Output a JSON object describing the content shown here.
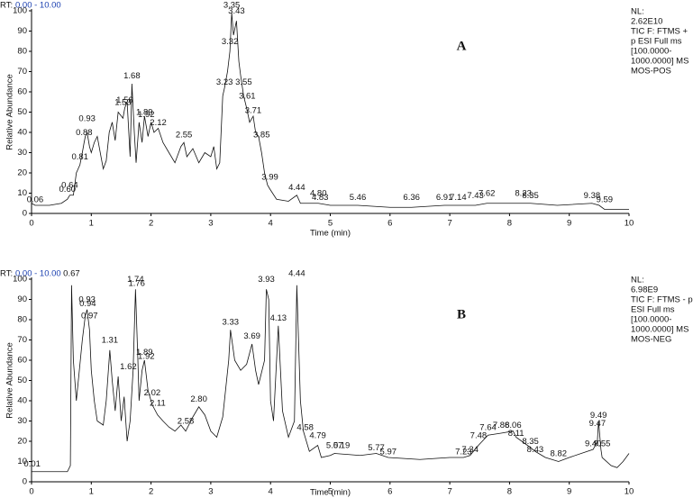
{
  "chart_data": [
    {
      "type": "line",
      "rt_prefix": "RT:",
      "rt_range": "0.00 - 10.00",
      "panel": "A",
      "info": [
        "NL:",
        "2.62E10",
        "TIC F: FTMS +",
        "p ESI Full ms",
        "[100.0000-",
        "1000.0000]  MS",
        "MOS-POS"
      ],
      "xlabel": "Time (min)",
      "ylabel": "Relative Abundance",
      "color": "#111111",
      "xlim": [
        0,
        10
      ],
      "ylim": [
        0,
        100
      ],
      "xticks": [
        0,
        1,
        2,
        3,
        4,
        5,
        6,
        7,
        8,
        9,
        10
      ],
      "yticks": [
        0,
        10,
        20,
        30,
        40,
        50,
        60,
        70,
        80,
        90,
        100
      ],
      "x": [
        0,
        0.06,
        0.3,
        0.5,
        0.6,
        0.64,
        0.7,
        0.75,
        0.81,
        0.85,
        0.88,
        0.9,
        0.93,
        0.97,
        1.0,
        1.05,
        1.1,
        1.2,
        1.25,
        1.3,
        1.35,
        1.4,
        1.45,
        1.53,
        1.56,
        1.6,
        1.65,
        1.68,
        1.72,
        1.75,
        1.8,
        1.85,
        1.89,
        1.95,
        2.0,
        2.05,
        2.12,
        2.2,
        2.3,
        2.4,
        2.5,
        2.55,
        2.6,
        2.7,
        2.8,
        2.9,
        3.0,
        3.05,
        3.1,
        3.15,
        3.2,
        3.23,
        3.28,
        3.32,
        3.35,
        3.38,
        3.43,
        3.47,
        3.5,
        3.55,
        3.6,
        3.65,
        3.71,
        3.75,
        3.8,
        3.85,
        3.9,
        3.95,
        3.99,
        4.1,
        4.3,
        4.44,
        4.5,
        4.8,
        5.0,
        5.46,
        6.0,
        6.36,
        6.91,
        7.14,
        7.43,
        7.62,
        8.0,
        8.23,
        8.35,
        8.8,
        9.38,
        9.5,
        9.59,
        10
      ],
      "values": [
        5,
        4,
        4,
        5,
        7,
        9,
        9,
        20,
        24,
        30,
        35,
        38,
        40,
        33,
        30,
        35,
        38,
        22,
        26,
        40,
        45,
        36,
        50,
        47,
        52,
        55,
        28,
        64,
        40,
        25,
        45,
        35,
        48,
        38,
        45,
        40,
        42,
        35,
        30,
        25,
        33,
        35,
        28,
        32,
        25,
        30,
        28,
        33,
        22,
        25,
        58,
        62,
        70,
        80,
        99,
        88,
        95,
        75,
        68,
        58,
        52,
        45,
        48,
        40,
        38,
        30,
        20,
        14,
        12,
        7,
        6,
        9,
        5,
        5,
        4,
        4,
        3,
        3,
        4,
        4,
        4,
        5,
        5,
        5,
        5,
        4,
        5,
        4,
        2,
        2
      ],
      "peaks": [
        {
          "x": 0.06,
          "y": 5,
          "label": "0.06"
        },
        {
          "x": 0.6,
          "y": 10,
          "label": "0.60"
        },
        {
          "x": 0.64,
          "y": 12,
          "label": "0.64"
        },
        {
          "x": 0.81,
          "y": 26,
          "label": "0.81"
        },
        {
          "x": 0.88,
          "y": 38,
          "label": "0.88"
        },
        {
          "x": 0.93,
          "y": 45,
          "label": "0.93"
        },
        {
          "x": 1.53,
          "y": 53,
          "label": "1.53"
        },
        {
          "x": 1.56,
          "y": 54,
          "label": "1.56"
        },
        {
          "x": 1.68,
          "y": 66,
          "label": "1.68"
        },
        {
          "x": 1.89,
          "y": 48,
          "label": "1.89"
        },
        {
          "x": 1.92,
          "y": 47,
          "label": "1.92"
        },
        {
          "x": 2.12,
          "y": 43,
          "label": "2.12"
        },
        {
          "x": 2.55,
          "y": 37,
          "label": "2.55"
        },
        {
          "x": 3.23,
          "y": 63,
          "label": "3.23"
        },
        {
          "x": 3.32,
          "y": 83,
          "label": "3.32"
        },
        {
          "x": 3.35,
          "y": 101,
          "label": "3.35"
        },
        {
          "x": 3.43,
          "y": 98,
          "label": "3.43"
        },
        {
          "x": 3.55,
          "y": 63,
          "label": "3.55"
        },
        {
          "x": 3.61,
          "y": 56,
          "label": "3.61"
        },
        {
          "x": 3.71,
          "y": 49,
          "label": "3.71"
        },
        {
          "x": 3.85,
          "y": 37,
          "label": "3.85"
        },
        {
          "x": 3.99,
          "y": 16,
          "label": "3.99"
        },
        {
          "x": 4.44,
          "y": 11,
          "label": "4.44"
        },
        {
          "x": 4.8,
          "y": 8,
          "label": "4.80"
        },
        {
          "x": 4.83,
          "y": 6,
          "label": "4.83"
        },
        {
          "x": 5.46,
          "y": 6,
          "label": "5.46"
        },
        {
          "x": 6.36,
          "y": 6,
          "label": "6.36"
        },
        {
          "x": 6.91,
          "y": 6,
          "label": "6.91"
        },
        {
          "x": 7.14,
          "y": 6,
          "label": "7.14"
        },
        {
          "x": 7.43,
          "y": 7,
          "label": "7.43"
        },
        {
          "x": 7.62,
          "y": 8,
          "label": "7.62"
        },
        {
          "x": 8.23,
          "y": 8,
          "label": "8.23"
        },
        {
          "x": 8.35,
          "y": 7,
          "label": "8.35"
        },
        {
          "x": 9.38,
          "y": 7,
          "label": "9.38"
        },
        {
          "x": 9.59,
          "y": 5,
          "label": "9.59"
        }
      ]
    },
    {
      "type": "line",
      "rt_prefix": "RT:",
      "rt_range": "0.00 - 10.00",
      "panel": "B",
      "info": [
        "NL:",
        "6.98E9",
        "TIC F: FTMS - p",
        "ESI Full ms",
        "[100.0000-",
        "1000.0000]  MS",
        "MOS-NEG"
      ],
      "xlabel": "Time (min)",
      "ylabel": "Relative Abundance",
      "color": "#111111",
      "xlim": [
        0,
        10
      ],
      "ylim": [
        0,
        100
      ],
      "xticks": [
        0,
        1,
        2,
        3,
        4,
        5,
        6,
        7,
        8,
        9,
        10
      ],
      "yticks": [
        0,
        10,
        20,
        30,
        40,
        50,
        60,
        70,
        80,
        90,
        100
      ],
      "x": [
        0,
        0.01,
        0.6,
        0.65,
        0.67,
        0.7,
        0.75,
        0.8,
        0.85,
        0.9,
        0.93,
        0.97,
        1.0,
        1.05,
        1.1,
        1.2,
        1.25,
        1.31,
        1.35,
        1.4,
        1.45,
        1.5,
        1.55,
        1.6,
        1.65,
        1.7,
        1.74,
        1.78,
        1.8,
        1.85,
        1.89,
        1.95,
        2.02,
        2.11,
        2.2,
        2.3,
        2.4,
        2.5,
        2.58,
        2.7,
        2.8,
        2.9,
        3.0,
        3.1,
        3.2,
        3.3,
        3.33,
        3.4,
        3.5,
        3.6,
        3.69,
        3.75,
        3.8,
        3.9,
        3.93,
        3.97,
        4.0,
        4.05,
        4.13,
        4.2,
        4.3,
        4.4,
        4.44,
        4.5,
        4.55,
        4.58,
        4.65,
        4.79,
        4.85,
        5.0,
        5.07,
        5.5,
        5.77,
        5.97,
        6.5,
        7.0,
        7.23,
        7.34,
        7.48,
        7.64,
        7.86,
        8.06,
        8.11,
        8.3,
        8.43,
        8.6,
        8.82,
        9.0,
        9.4,
        9.47,
        9.49,
        9.53,
        9.55,
        9.7,
        9.8,
        9.9,
        10
      ],
      "values": [
        5,
        5,
        5,
        8,
        97,
        60,
        40,
        55,
        70,
        82,
        85,
        75,
        55,
        40,
        30,
        28,
        40,
        65,
        50,
        35,
        52,
        30,
        42,
        20,
        30,
        55,
        95,
        60,
        40,
        55,
        60,
        45,
        38,
        33,
        30,
        27,
        25,
        28,
        25,
        32,
        37,
        33,
        25,
        22,
        32,
        60,
        75,
        60,
        55,
        58,
        68,
        55,
        48,
        60,
        95,
        90,
        40,
        30,
        77,
        35,
        22,
        30,
        97,
        40,
        25,
        22,
        15,
        18,
        12,
        13,
        14,
        13,
        14,
        12,
        11,
        12,
        12,
        13,
        18,
        23,
        24,
        25,
        22,
        18,
        15,
        12,
        10,
        12,
        16,
        20,
        30,
        16,
        12,
        8,
        7,
        10,
        14
      ],
      "peaks": [
        {
          "x": 0.01,
          "y": 7,
          "label": "0.01"
        },
        {
          "x": 0.67,
          "y": 101,
          "label": "0.67"
        },
        {
          "x": 0.93,
          "y": 88,
          "label": "0.93"
        },
        {
          "x": 0.94,
          "y": 86,
          "label": "0.94"
        },
        {
          "x": 0.97,
          "y": 80,
          "label": "0.97"
        },
        {
          "x": 1.31,
          "y": 68,
          "label": "1.31"
        },
        {
          "x": 1.62,
          "y": 55,
          "label": "1.62"
        },
        {
          "x": 1.74,
          "y": 98,
          "label": "1.74"
        },
        {
          "x": 1.76,
          "y": 96,
          "label": "1.76"
        },
        {
          "x": 1.89,
          "y": 62,
          "label": "1.89"
        },
        {
          "x": 1.92,
          "y": 60,
          "label": "1.92"
        },
        {
          "x": 2.02,
          "y": 42,
          "label": "2.02"
        },
        {
          "x": 2.11,
          "y": 37,
          "label": "2.11"
        },
        {
          "x": 2.58,
          "y": 28,
          "label": "2.58"
        },
        {
          "x": 2.8,
          "y": 39,
          "label": "2.80"
        },
        {
          "x": 3.33,
          "y": 77,
          "label": "3.33"
        },
        {
          "x": 3.69,
          "y": 70,
          "label": "3.69"
        },
        {
          "x": 3.93,
          "y": 98,
          "label": "3.93"
        },
        {
          "x": 4.13,
          "y": 79,
          "label": "4.13"
        },
        {
          "x": 4.44,
          "y": 101,
          "label": "4.44"
        },
        {
          "x": 4.58,
          "y": 25,
          "label": "4.58"
        },
        {
          "x": 4.79,
          "y": 21,
          "label": "4.79"
        },
        {
          "x": 5.07,
          "y": 16,
          "label": "5.07"
        },
        {
          "x": 5.19,
          "y": 16,
          "label": "5.19"
        },
        {
          "x": 5.77,
          "y": 15,
          "label": "5.77"
        },
        {
          "x": 5.97,
          "y": 13,
          "label": "5.97"
        },
        {
          "x": 7.23,
          "y": 13,
          "label": "7.23"
        },
        {
          "x": 7.34,
          "y": 14,
          "label": "7.34"
        },
        {
          "x": 7.48,
          "y": 21,
          "label": "7.48"
        },
        {
          "x": 7.64,
          "y": 25,
          "label": "7.64"
        },
        {
          "x": 7.86,
          "y": 26,
          "label": "7.86"
        },
        {
          "x": 8.06,
          "y": 26,
          "label": "8.06"
        },
        {
          "x": 8.11,
          "y": 22,
          "label": "8.11"
        },
        {
          "x": 8.35,
          "y": 18,
          "label": "8.35"
        },
        {
          "x": 8.43,
          "y": 14,
          "label": "8.43"
        },
        {
          "x": 8.82,
          "y": 12,
          "label": "8.82"
        },
        {
          "x": 9.4,
          "y": 17,
          "label": "9.40"
        },
        {
          "x": 9.47,
          "y": 27,
          "label": "9.47"
        },
        {
          "x": 9.49,
          "y": 31,
          "label": "9.49"
        },
        {
          "x": 9.55,
          "y": 17,
          "label": "9.55"
        }
      ]
    }
  ]
}
